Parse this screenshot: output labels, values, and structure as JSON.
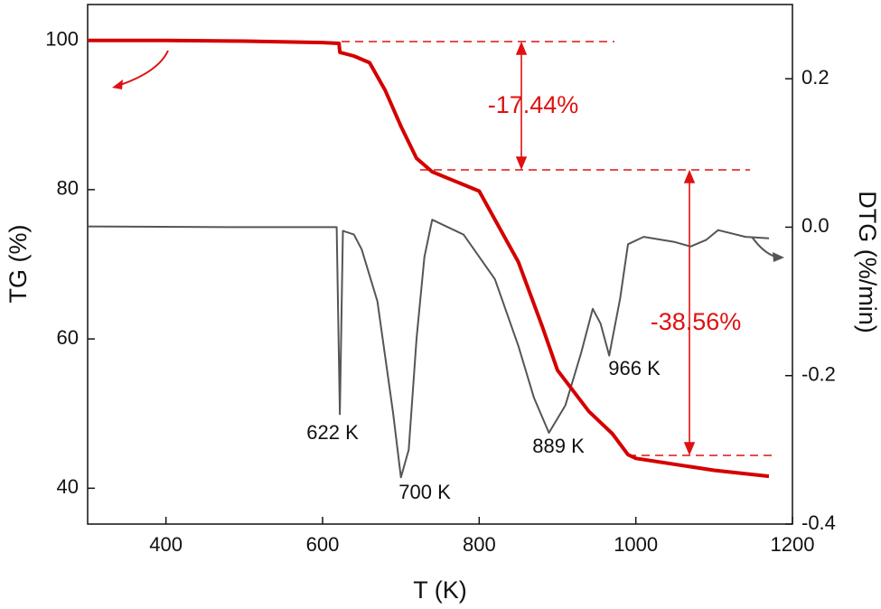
{
  "chart_data": {
    "type": "line",
    "x_label": "T (K)",
    "y_label": "TG (%)",
    "y2_label": "DTG (%/min)",
    "xlim": [
      300,
      1200
    ],
    "xticks": [
      400,
      600,
      800,
      1000,
      1200
    ],
    "ylim": [
      35.2,
      104.8
    ],
    "yticks": [
      40,
      60,
      80,
      100
    ],
    "y2lim": [
      -0.4,
      0.3
    ],
    "y2ticks": [
      {
        "value": -0.4,
        "label": "-0.4"
      },
      {
        "value": -0.2,
        "label": "-0.2"
      },
      {
        "value": 0,
        "label": "0.0"
      },
      {
        "value": 0.2,
        "label": "0.2"
      }
    ],
    "series": [
      {
        "color": "#d40000",
        "axis": "y",
        "x": [
          300,
          400,
          500,
          600,
          621,
          622,
          640,
          660,
          680,
          700,
          720,
          740,
          800,
          850,
          880,
          900,
          940,
          970,
          990,
          1000,
          1100,
          1170
        ],
        "values": [
          100,
          100,
          99.9,
          99.7,
          99.6,
          98.4,
          97.9,
          97,
          93.3,
          88.5,
          84.2,
          82.4,
          79.8,
          70.3,
          61.8,
          55.8,
          50.3,
          47.3,
          44.5,
          44.0,
          42.4,
          41.6
        ]
      },
      {
        "color": "#555555",
        "axis": "y2",
        "x": [
          300,
          500,
          600,
          618,
          622,
          626,
          640,
          650,
          670,
          690,
          700,
          710,
          720,
          730,
          740,
          780,
          820,
          850,
          870,
          889,
          910,
          930,
          945,
          955,
          966,
          980,
          990,
          1010,
          1050,
          1070,
          1090,
          1105,
          1140,
          1170
        ],
        "values": [
          0.001,
          0.0,
          0.0,
          0.0,
          -0.252,
          -0.005,
          -0.01,
          -0.03,
          -0.1,
          -0.25,
          -0.337,
          -0.3,
          -0.15,
          -0.04,
          0.01,
          -0.01,
          -0.07,
          -0.16,
          -0.23,
          -0.277,
          -0.24,
          -0.17,
          -0.11,
          -0.13,
          -0.173,
          -0.096,
          -0.023,
          -0.013,
          -0.02,
          -0.026,
          -0.017,
          -0.004,
          -0.013,
          -0.015
        ]
      }
    ],
    "annotations": [
      "-17.44%",
      "-38.56%",
      "622 K",
      "700 K",
      "889 K",
      "966 K"
    ]
  }
}
